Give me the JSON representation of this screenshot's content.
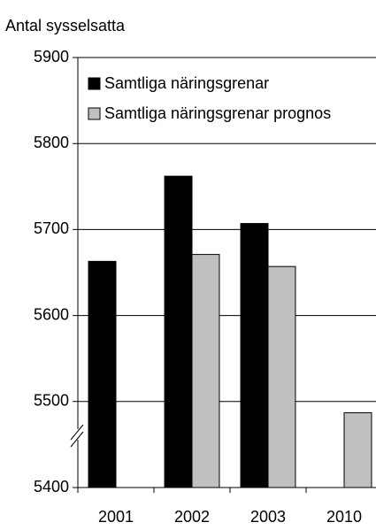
{
  "chart_data": {
    "type": "bar",
    "y_axis_label": "Antal sysselsatta",
    "categories": [
      "2001",
      "2002",
      "2003",
      "2010"
    ],
    "series": [
      {
        "name": "Samtliga näringsgrenar",
        "color": "#000000",
        "values": [
          5663,
          5762,
          5707,
          null
        ]
      },
      {
        "name": "Samtliga näringsgrenar prognos",
        "color": "#c0c0c0",
        "values": [
          null,
          5671,
          5657,
          5487
        ]
      }
    ],
    "ylim": [
      5400,
      5900
    ],
    "yticks": [
      5400,
      5500,
      5600,
      5700,
      5800,
      5900
    ],
    "grid": true,
    "legend": "top-left"
  }
}
